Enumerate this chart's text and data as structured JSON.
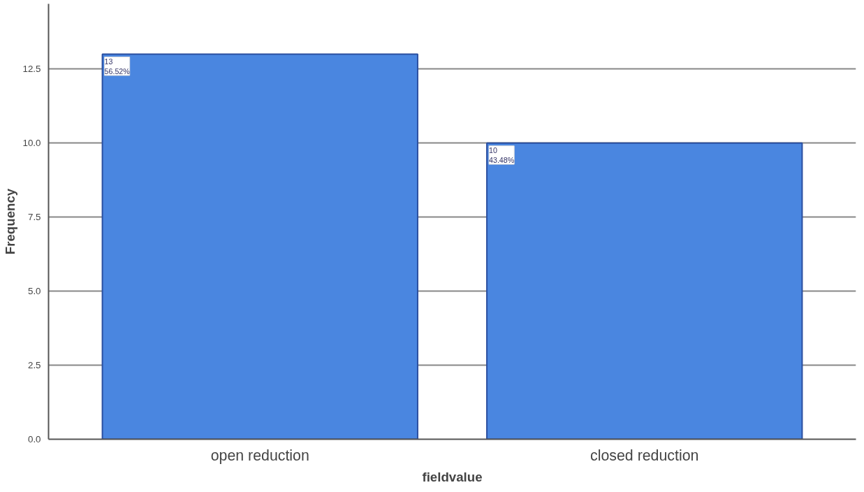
{
  "chart_data": {
    "type": "bar",
    "xlabel": "fieldvalue",
    "ylabel": "Frequency",
    "categories": [
      "open reduction",
      "closed reduction"
    ],
    "values": [
      13,
      10
    ],
    "color": "#4a86e0",
    "value_labels": [
      "13\n56.52%",
      "10\n43.48%"
    ],
    "ylim": [
      0,
      14.7
    ],
    "yticks": [
      {
        "value": 0,
        "label": "0.0"
      },
      {
        "value": 2.5,
        "label": "2.5"
      },
      {
        "value": 5,
        "label": "5.0"
      },
      {
        "value": 7.5,
        "label": "7.5"
      },
      {
        "value": 10,
        "label": "10.0"
      },
      {
        "value": 12.5,
        "label": "12.5"
      }
    ],
    "grid": "y"
  }
}
